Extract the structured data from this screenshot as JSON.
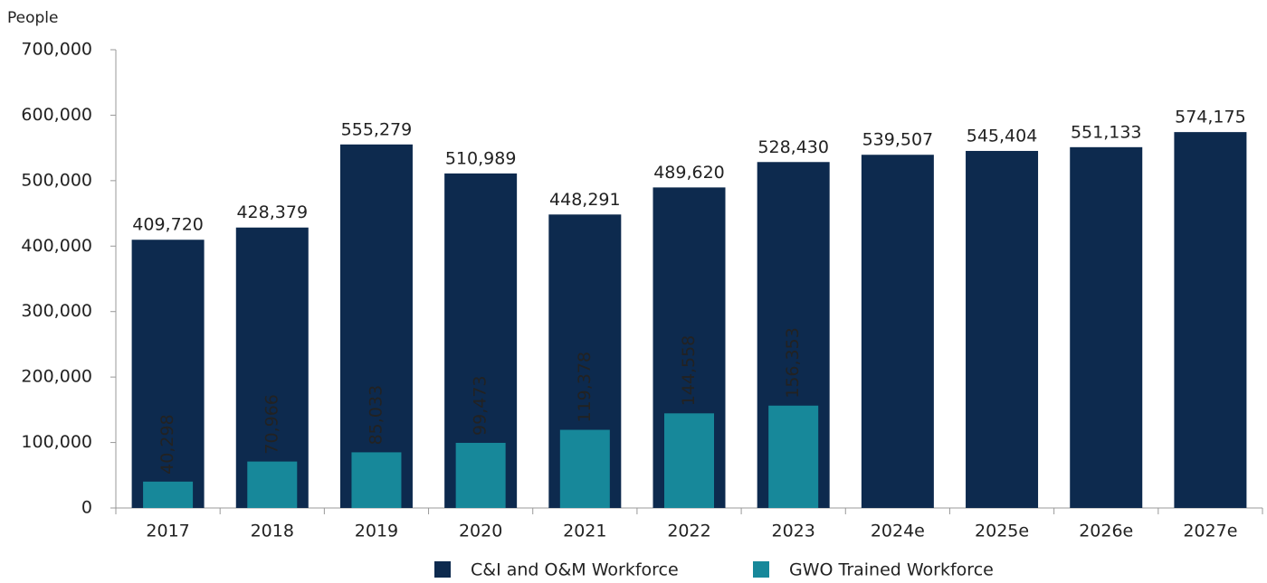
{
  "chart_data": {
    "type": "bar",
    "y_label": "People",
    "categories": [
      "2017",
      "2018",
      "2019",
      "2020",
      "2021",
      "2022",
      "2023",
      "2024e",
      "2025e",
      "2026e",
      "2027e"
    ],
    "series": [
      {
        "name": "C&I and O&M Workforce",
        "color": "#0d2a4e",
        "values": [
          409720,
          428379,
          555279,
          510989,
          448291,
          489620,
          528430,
          539507,
          545404,
          551133,
          574175
        ],
        "value_labels": [
          "409,720",
          "428,379",
          "555,279",
          "510,989",
          "448,291",
          "489,620",
          "528,430",
          "539,507",
          "545,404",
          "551,133",
          "574,175"
        ]
      },
      {
        "name": "GWO Trained Workforce",
        "color": "#17889a",
        "values": [
          40298,
          70966,
          85033,
          99473,
          119378,
          144558,
          156353,
          null,
          null,
          null,
          null
        ],
        "value_labels": [
          "40,298",
          "70,966",
          "85,033",
          "99,473",
          "119,378",
          "144,558",
          "156,353",
          null,
          null,
          null,
          null
        ]
      }
    ],
    "ylim": [
      0,
      700000
    ],
    "yticks": [
      0,
      {
        "value": 100000,
        "label": "100,000"
      },
      {
        "value": 200000,
        "label": "200,000"
      },
      {
        "value": 300000,
        "label": "300,000"
      },
      {
        "value": 400000,
        "label": "400,000"
      },
      {
        "value": 500000,
        "label": "500,000"
      },
      {
        "value": 600000,
        "label": "600,000"
      },
      {
        "value": 700000,
        "label": "700,000"
      }
    ],
    "grid": false
  }
}
